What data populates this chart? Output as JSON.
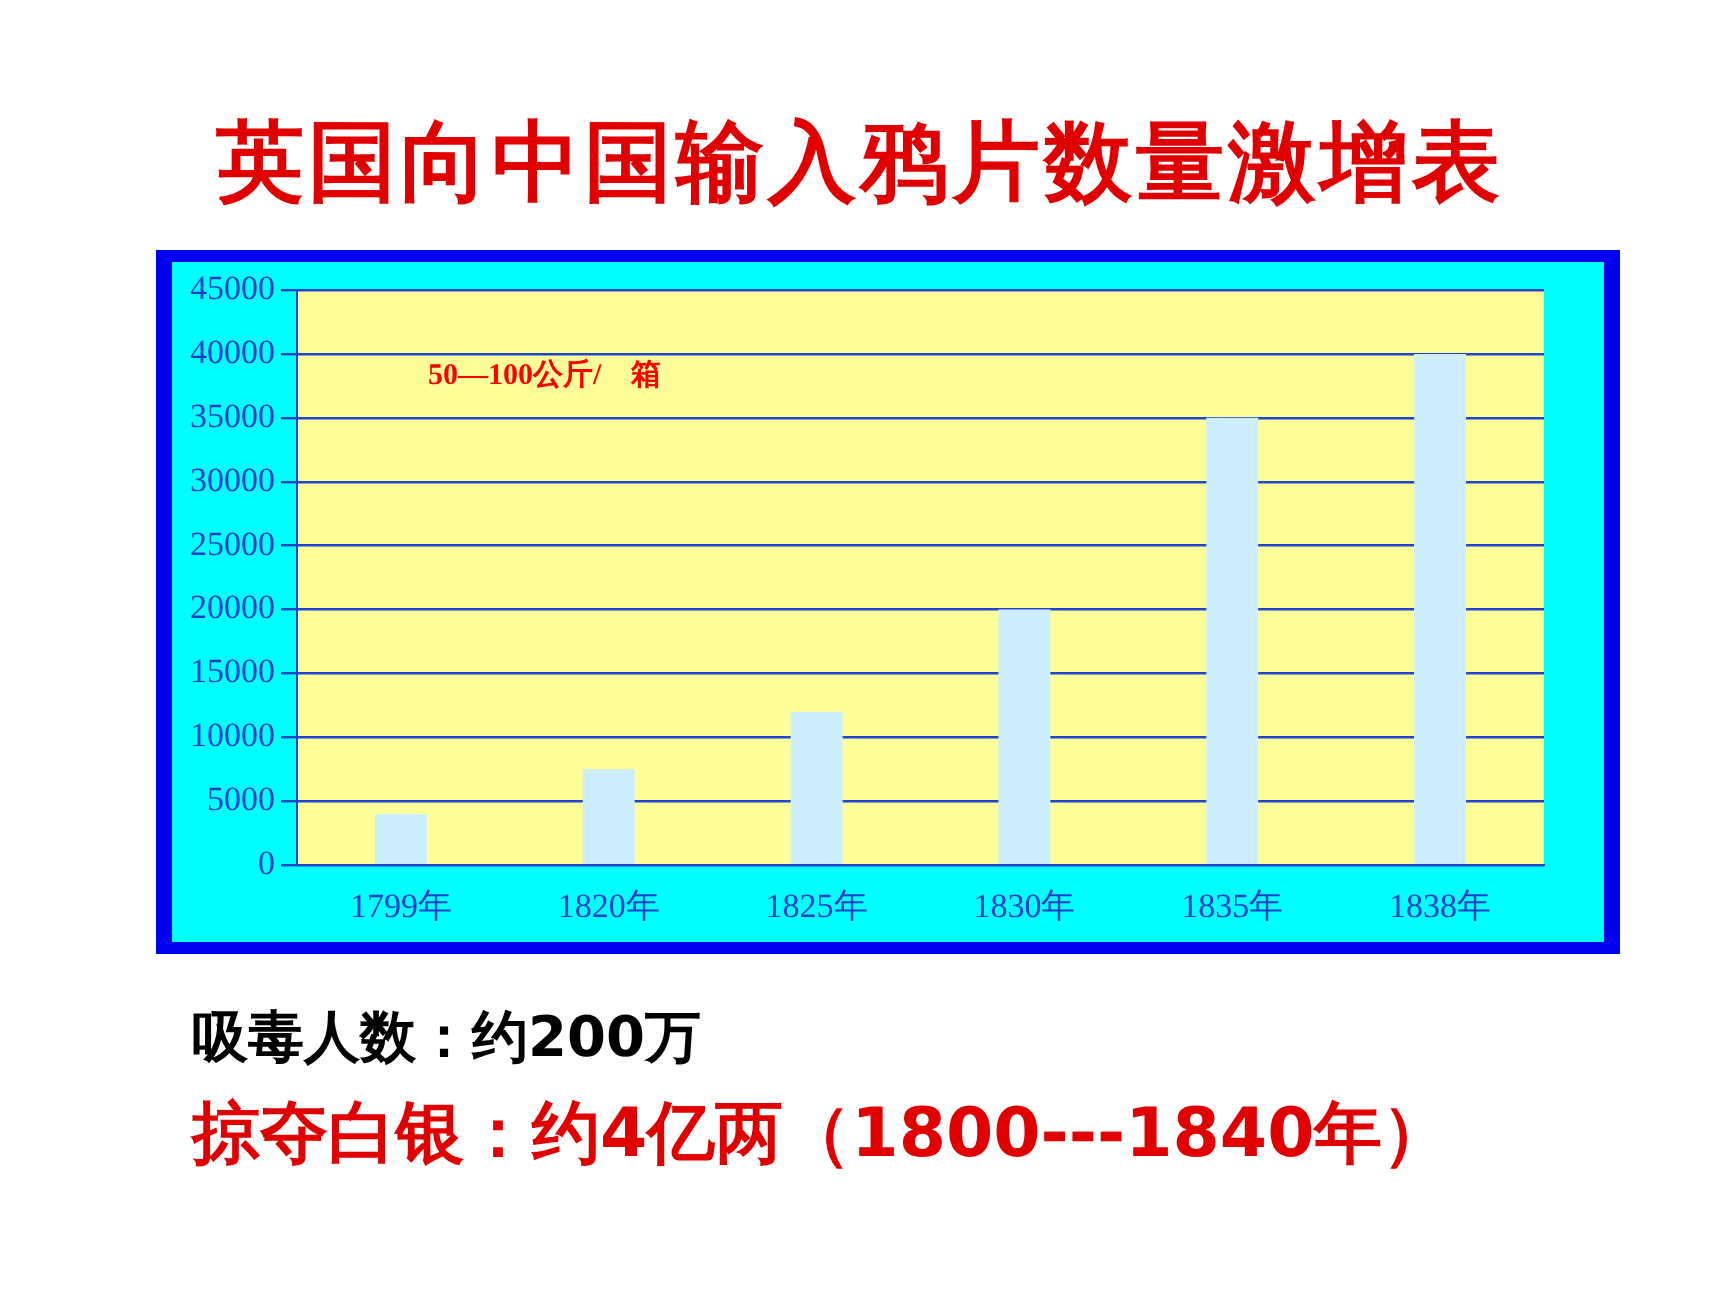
{
  "chart_data": {
    "type": "bar",
    "title": "英国向中国输入鸦片数量激增表",
    "categories": [
      "1799年",
      "1820年",
      "1825年",
      "1830年",
      "1835年",
      "1838年"
    ],
    "values": [
      4000,
      7500,
      12000,
      20000,
      35000,
      40000
    ],
    "color": "#cceeff",
    "ylim": [
      0,
      45000
    ],
    "yticks": [
      0,
      5000,
      10000,
      15000,
      20000,
      25000,
      30000,
      35000,
      40000,
      45000
    ],
    "grid": "y",
    "annotations": [
      "50—100公斤/　箱",
      "吸毒人数：约200万",
      "掠夺白银：约4亿两（1800---1840年）"
    ]
  }
}
